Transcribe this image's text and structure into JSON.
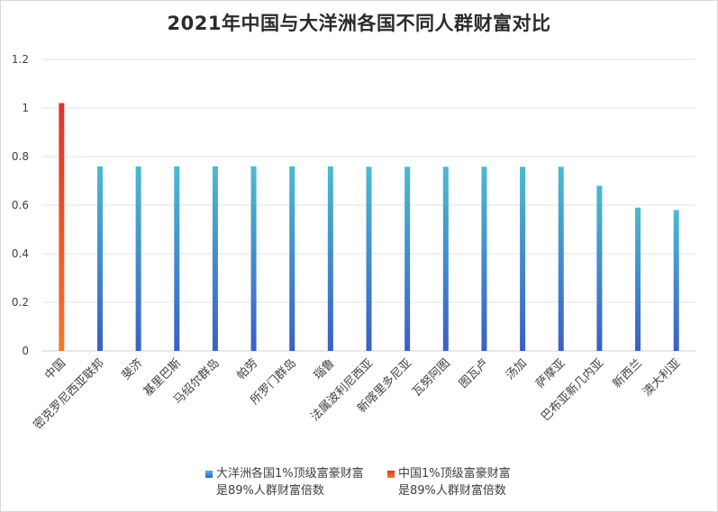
{
  "chart_data": {
    "type": "bar",
    "title": "2021年中国与大洋洲各国不同人群财富对比",
    "categories": [
      "中国",
      "密克罗尼西亚联邦",
      "斐济",
      "基里巴斯",
      "马绍尔群岛",
      "帕劳",
      "所罗门群岛",
      "瑙鲁",
      "法属波利尼西亚",
      "新喀里多尼亚",
      "瓦努阿图",
      "图瓦卢",
      "汤加",
      "萨摩亚",
      "巴布亚新几内亚",
      "新西兰",
      "澳大利亚"
    ],
    "series": [
      {
        "name": "中国1%顶级富豪财富是89%人群财富倍数",
        "values": [
          1.02,
          null,
          null,
          null,
          null,
          null,
          null,
          null,
          null,
          null,
          null,
          null,
          null,
          null,
          null,
          null,
          null
        ]
      },
      {
        "name": "大洋洲各国1%顶级富豪财富是89%人群财富倍数",
        "values": [
          null,
          0.76,
          0.76,
          0.76,
          0.76,
          0.76,
          0.76,
          0.76,
          0.758,
          0.758,
          0.758,
          0.758,
          0.758,
          0.758,
          0.68,
          0.59,
          0.58
        ]
      }
    ],
    "ylim": [
      0,
      1.2
    ],
    "yticks": [
      "0",
      "0.2",
      "0.4",
      "0.6",
      "0.8",
      "1",
      "1.2"
    ],
    "grid": true,
    "legend_position": "bottom",
    "colors": {
      "china_top": "#e0322a",
      "china_bottom": "#f07a2a",
      "oceania_top": "#4bbbd0",
      "oceania_bottom": "#3a5fc8"
    }
  },
  "legend": {
    "oceania": [
      "大洋洲各国1%顶级富豪财富",
      "是89%人群财富倍数"
    ],
    "china": [
      "中国1%顶级富豪财富",
      "是89%人群财富倍数"
    ]
  }
}
